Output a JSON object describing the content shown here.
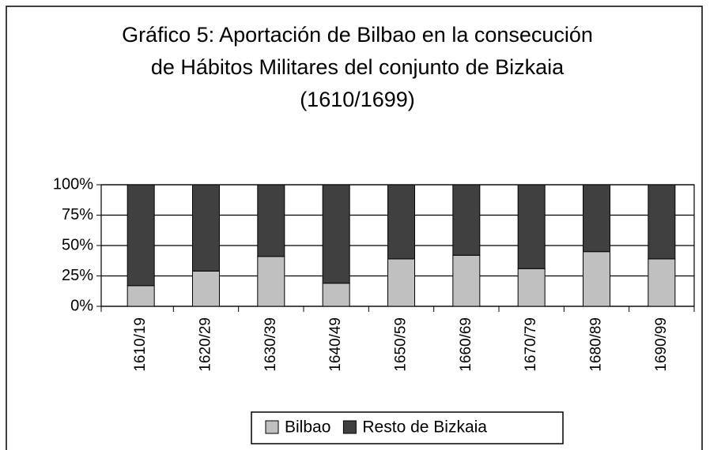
{
  "chart_data": {
    "type": "stacked_bar",
    "title": [
      "Gráfico 5: Aportación de Bilbao en la consecución",
      "de Hábitos Militares del conjunto de Bizkaia",
      "(1610/1699)"
    ],
    "categories": [
      "1610/19",
      "1620/29",
      "1630/39",
      "1640/49",
      "1650/59",
      "1660/69",
      "1670/79",
      "1680/89",
      "1690/99"
    ],
    "series": [
      {
        "name": "Bilbao",
        "color": "#c0c0c0",
        "values": [
          17,
          29,
          41,
          19,
          39,
          42,
          31,
          45,
          39
        ]
      },
      {
        "name": "Resto de Bizkaia",
        "color": "#404040",
        "values": [
          83,
          71,
          59,
          81,
          61,
          58,
          69,
          55,
          61
        ]
      }
    ],
    "ylim": [
      0,
      100
    ],
    "yticks": [
      {
        "value": 0,
        "label": "0%"
      },
      {
        "value": 25,
        "label": "25%"
      },
      {
        "value": 50,
        "label": "50%"
      },
      {
        "value": 75,
        "label": "75%"
      },
      {
        "value": 100,
        "label": "100%"
      }
    ],
    "grid": true,
    "legend": "bottom"
  }
}
